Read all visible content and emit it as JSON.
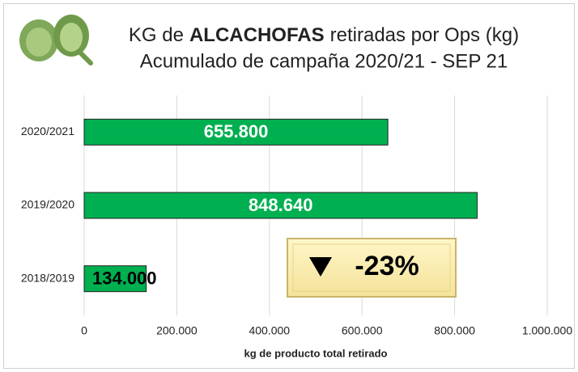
{
  "chart_data": {
    "type": "hbar",
    "title": [
      "KG de",
      "ALCACHOFAS",
      "retiradas por Ops (kg)"
    ],
    "subtitle": "Acumulado de campaña 2020/21 - SEP 21",
    "categories": [
      "2020/2021",
      "2019/2020",
      "2018/2019"
    ],
    "values": [
      655800,
      848640,
      134000
    ],
    "value_labels": [
      "655.800",
      "848.640",
      "134.000"
    ],
    "color": "#00b050",
    "xlim": [
      0,
      1000000
    ],
    "xticks": [
      0,
      {
        "value": 200000,
        "label": "200.000"
      },
      {
        "value": 400000,
        "label": "400.000"
      },
      {
        "value": 600000,
        "label": "600.000"
      },
      {
        "value": 800000,
        "label": "800.000"
      },
      {
        "value": 1000000,
        "label": "1.000.000"
      }
    ],
    "xlabel": "kg de producto total retirado",
    "annotation": "-23%",
    "grid": true
  }
}
